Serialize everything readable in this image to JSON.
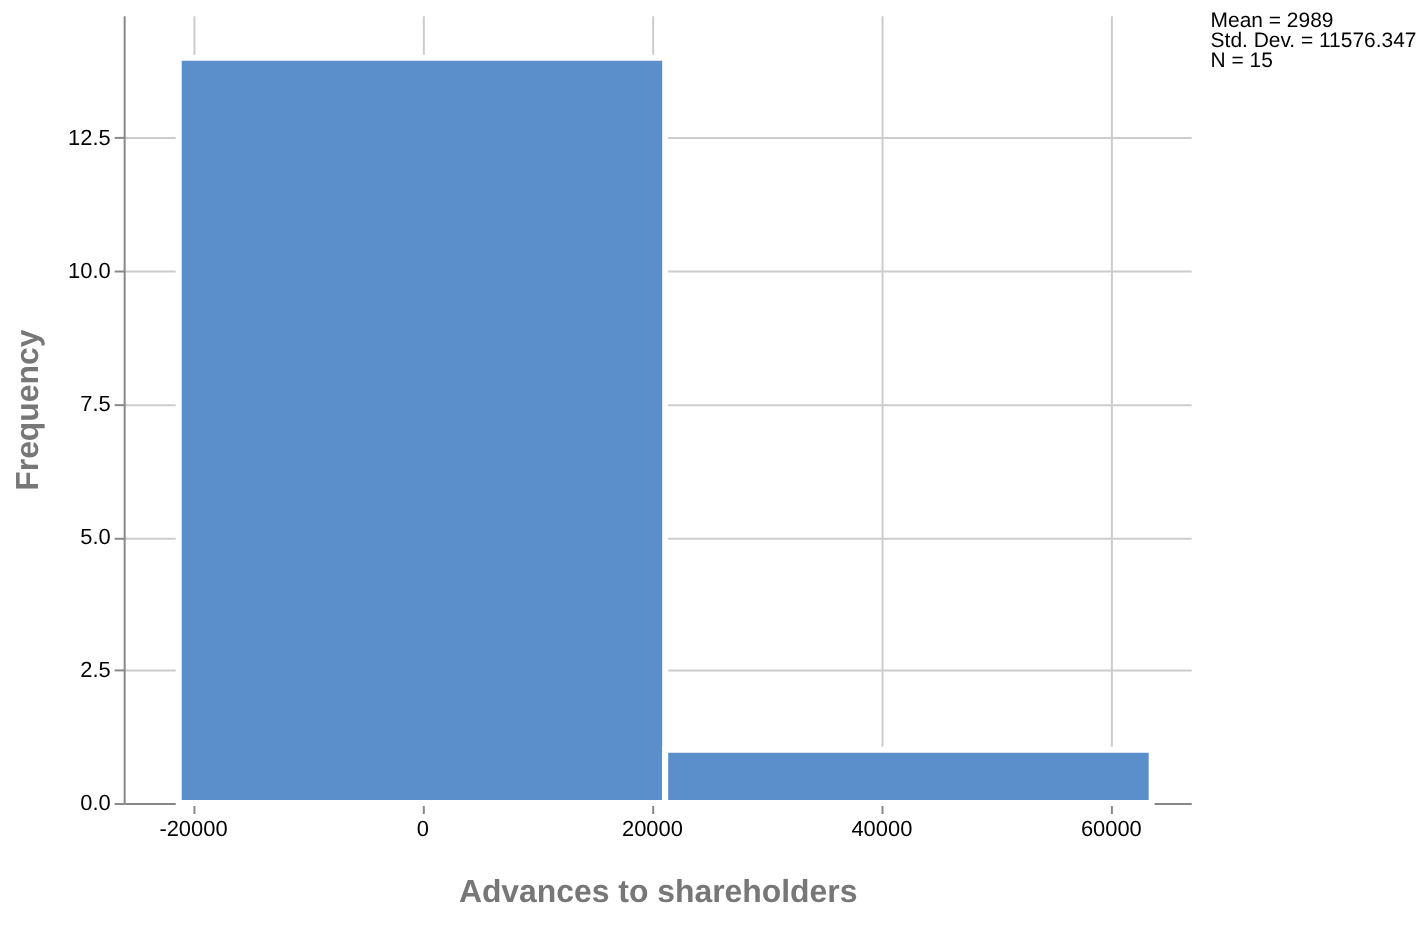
{
  "chart_data": {
    "type": "histogram",
    "xlabel": "Advances to shareholders",
    "ylabel": "Frequency",
    "bins": [
      -21200,
      21200,
      63600
    ],
    "values": [
      14,
      1
    ],
    "color": "#5b8fcb",
    "xlim": [
      -26000,
      67000
    ],
    "xticks": [
      -20000,
      0,
      20000,
      40000,
      60000
    ],
    "ylim": [
      0,
      14.8
    ],
    "yticks": [
      {
        "value": 0,
        "label": "0.0"
      },
      {
        "value": 2.5,
        "label": "2.5"
      },
      {
        "value": 5,
        "label": "5.0"
      },
      {
        "value": 7.5,
        "label": "7.5"
      },
      {
        "value": 10,
        "label": "10.0"
      },
      {
        "value": 12.5,
        "label": "12.5"
      }
    ],
    "grid": true,
    "annotations": [
      "Mean = 2989",
      "Std. Dev. = 11576.347",
      "N = 15"
    ]
  }
}
